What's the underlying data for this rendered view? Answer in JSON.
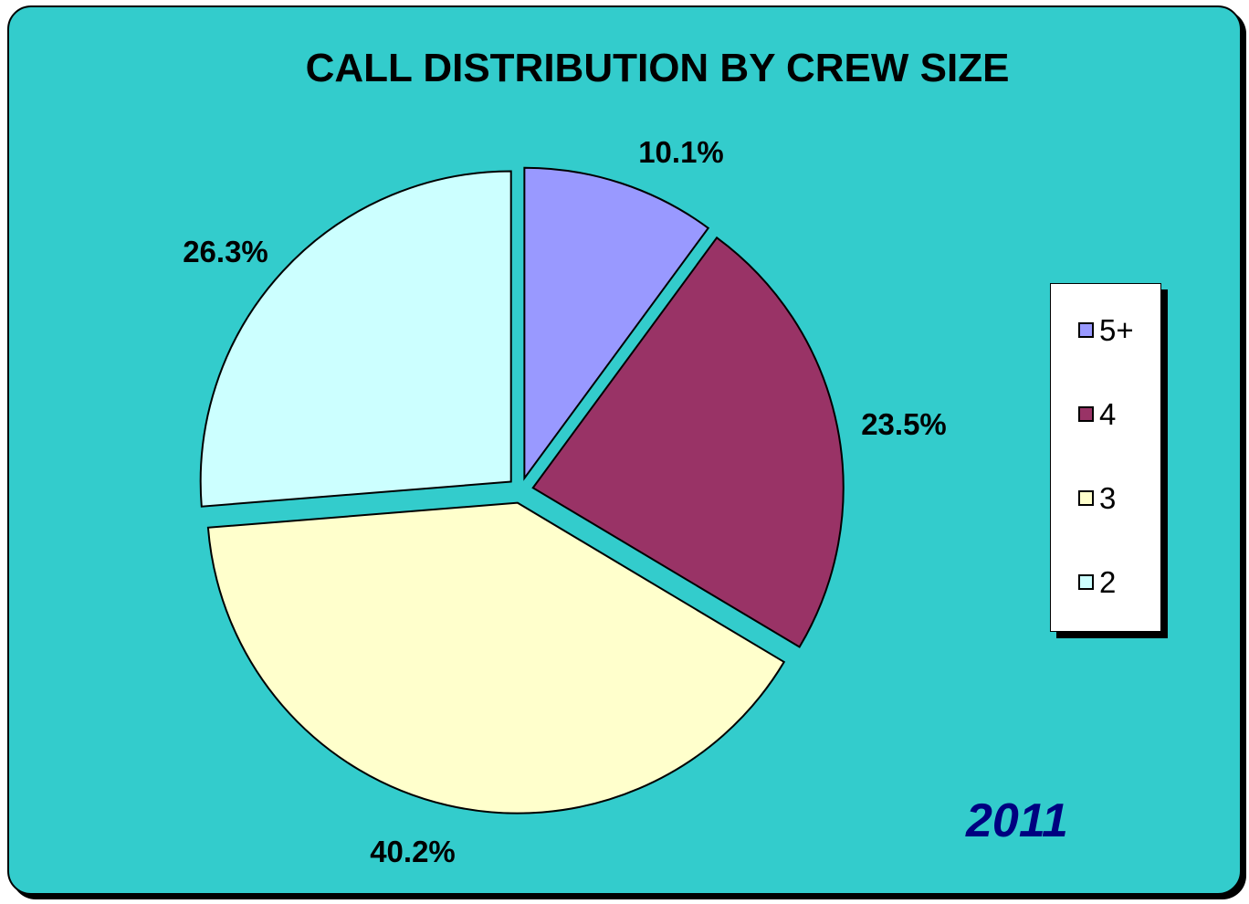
{
  "chart_data": {
    "type": "pie",
    "title": "CALL DISTRIBUTION BY CREW SIZE",
    "annotation": "2011",
    "slices": [
      {
        "label": "5+",
        "value": 10.1,
        "value_label": "10.1%",
        "color": "#9999ff"
      },
      {
        "label": "4",
        "value": 23.5,
        "value_label": "23.5%",
        "color": "#993366"
      },
      {
        "label": "3",
        "value": 40.2,
        "value_label": "40.2%",
        "color": "#ffffcc"
      },
      {
        "label": "2",
        "value": 26.3,
        "value_label": "26.3%",
        "color": "#ccffff"
      }
    ],
    "legend_position": "right",
    "background_color": "#33cccc",
    "exploded": true
  }
}
